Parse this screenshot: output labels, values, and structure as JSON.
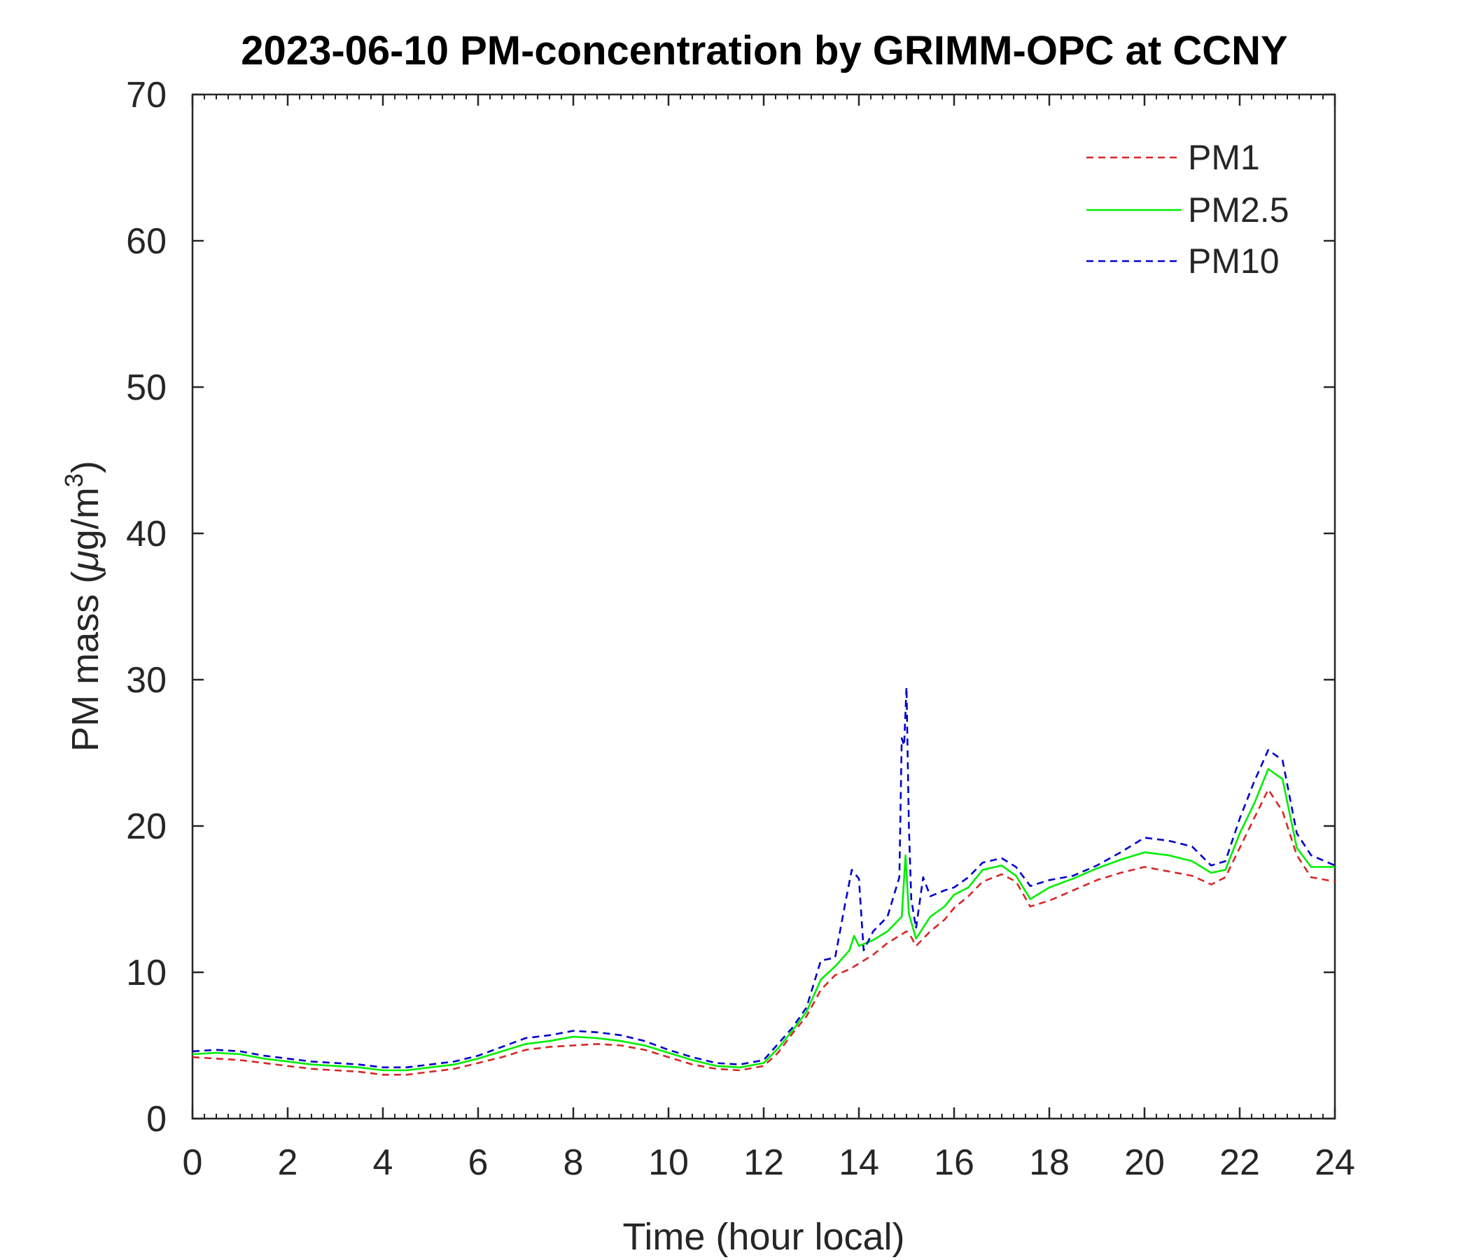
{
  "chart_data": {
    "type": "line",
    "title": "2023-06-10 PM-concentration by GRIMM-OPC at CCNY",
    "xlabel": "Time (hour local)",
    "ylabel_main": "PM mass (",
    "ylabel_mu": "μ",
    "ylabel_unit": "g/m",
    "ylabel_sup": "3",
    "ylabel_close": ")",
    "xlim": [
      0,
      24
    ],
    "ylim": [
      0,
      70
    ],
    "xticks": [
      0,
      2,
      4,
      6,
      8,
      10,
      12,
      14,
      16,
      18,
      20,
      22,
      24
    ],
    "yticks": [
      0,
      10,
      20,
      30,
      40,
      50,
      60,
      70
    ],
    "legend_position": "top-right",
    "grid": false,
    "series": [
      {
        "name": "PM1",
        "color": "#d62728",
        "style": "dashed",
        "x": [
          0,
          0.5,
          1,
          1.5,
          2,
          2.5,
          3,
          3.5,
          4,
          4.5,
          5,
          5.5,
          6,
          6.5,
          7,
          7.5,
          8,
          8.5,
          9,
          9.5,
          10,
          10.5,
          11,
          11.5,
          12,
          12.3,
          12.6,
          12.9,
          13.2,
          13.5,
          13.8,
          14,
          14.3,
          14.6,
          14.9,
          15,
          15.1,
          15.2,
          15.5,
          15.8,
          16,
          16.3,
          16.6,
          17,
          17.3,
          17.6,
          18,
          18.5,
          19,
          19.5,
          20,
          20.5,
          21,
          21.4,
          21.7,
          22,
          22.3,
          22.6,
          22.9,
          23.2,
          23.5,
          24
        ],
        "values": [
          4.2,
          4.1,
          4.0,
          3.8,
          3.6,
          3.4,
          3.3,
          3.2,
          3.0,
          3.0,
          3.2,
          3.4,
          3.8,
          4.2,
          4.7,
          4.9,
          5.0,
          5.1,
          5.0,
          4.7,
          4.2,
          3.7,
          3.4,
          3.3,
          3.6,
          4.5,
          5.8,
          7.0,
          8.8,
          9.8,
          10.2,
          10.6,
          11.2,
          12.0,
          12.6,
          12.8,
          12.4,
          11.8,
          12.8,
          13.6,
          14.4,
          15.2,
          16.2,
          16.7,
          16.2,
          14.5,
          14.9,
          15.6,
          16.3,
          16.8,
          17.2,
          16.9,
          16.6,
          16.0,
          16.5,
          18.5,
          20.5,
          22.5,
          21.0,
          18.0,
          16.5,
          16.2
        ]
      },
      {
        "name": "PM2.5",
        "color": "#00ee00",
        "style": "solid",
        "x": [
          0,
          0.5,
          1,
          1.5,
          2,
          2.5,
          3,
          3.5,
          4,
          4.5,
          5,
          5.5,
          6,
          6.5,
          7,
          7.5,
          8,
          8.5,
          9,
          9.5,
          10,
          10.5,
          11,
          11.5,
          12,
          12.3,
          12.6,
          12.9,
          13.2,
          13.5,
          13.8,
          13.9,
          14,
          14.3,
          14.6,
          14.9,
          14.98,
          15.05,
          15.2,
          15.5,
          15.8,
          16,
          16.3,
          16.6,
          17,
          17.3,
          17.6,
          18,
          18.5,
          19,
          19.5,
          20,
          20.5,
          21,
          21.4,
          21.7,
          22,
          22.3,
          22.6,
          22.9,
          23.2,
          23.5,
          24
        ],
        "values": [
          4.4,
          4.5,
          4.4,
          4.1,
          3.9,
          3.7,
          3.6,
          3.5,
          3.3,
          3.3,
          3.5,
          3.7,
          4.1,
          4.6,
          5.1,
          5.3,
          5.6,
          5.5,
          5.3,
          5.0,
          4.5,
          4.0,
          3.6,
          3.5,
          3.8,
          4.8,
          6.0,
          7.3,
          9.5,
          10.4,
          11.5,
          12.5,
          11.8,
          12.2,
          12.8,
          13.8,
          18.0,
          14.0,
          12.3,
          13.8,
          14.5,
          15.3,
          15.8,
          17.0,
          17.3,
          16.6,
          15.0,
          15.8,
          16.4,
          17.1,
          17.7,
          18.2,
          18.0,
          17.6,
          16.8,
          17.0,
          19.5,
          21.5,
          23.9,
          23.2,
          18.5,
          17.2,
          17.2
        ]
      },
      {
        "name": "PM10",
        "color": "#0000cc",
        "style": "dashed",
        "x": [
          0,
          0.5,
          1,
          1.5,
          2,
          2.5,
          3,
          3.5,
          4,
          4.5,
          5,
          5.5,
          6,
          6.5,
          7,
          7.5,
          8,
          8.5,
          9,
          9.5,
          10,
          10.5,
          11,
          11.5,
          12,
          12.3,
          12.6,
          12.9,
          13.2,
          13.5,
          13.7,
          13.85,
          14,
          14.1,
          14.3,
          14.6,
          14.85,
          14.9,
          14.95,
          15.0,
          15.05,
          15.1,
          15.2,
          15.35,
          15.5,
          15.8,
          16,
          16.3,
          16.6,
          17,
          17.3,
          17.6,
          18,
          18.5,
          19,
          19.5,
          20,
          20.5,
          21,
          21.4,
          21.7,
          22,
          22.3,
          22.6,
          22.9,
          23.2,
          23.5,
          24
        ],
        "values": [
          4.6,
          4.7,
          4.6,
          4.3,
          4.1,
          3.9,
          3.8,
          3.7,
          3.5,
          3.5,
          3.7,
          3.9,
          4.3,
          4.9,
          5.5,
          5.7,
          6.0,
          5.9,
          5.7,
          5.3,
          4.7,
          4.2,
          3.8,
          3.7,
          4.0,
          5.1,
          6.2,
          7.6,
          10.8,
          11.0,
          14.5,
          17.0,
          16.4,
          11.5,
          12.8,
          13.8,
          16.5,
          26.0,
          25.5,
          29.5,
          20.0,
          15.0,
          13.0,
          16.5,
          15.2,
          15.6,
          15.8,
          16.5,
          17.5,
          17.8,
          17.2,
          15.9,
          16.3,
          16.6,
          17.3,
          18.2,
          19.2,
          19.0,
          18.6,
          17.3,
          17.6,
          20.5,
          23.0,
          25.2,
          24.5,
          19.5,
          18.0,
          17.3
        ]
      }
    ]
  }
}
